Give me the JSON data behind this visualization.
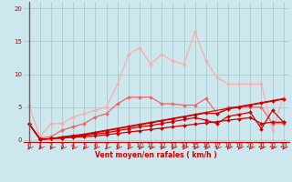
{
  "background_color": "#cce8ee",
  "grid_color": "#aacccc",
  "x_label": "Vent moyen/en rafales ( km/h )",
  "x_ticks": [
    0,
    1,
    2,
    3,
    4,
    5,
    6,
    7,
    8,
    9,
    10,
    11,
    12,
    13,
    14,
    15,
    16,
    17,
    18,
    19,
    20,
    21,
    22,
    23
  ],
  "y_ticks": [
    0,
    5,
    10,
    15,
    20
  ],
  "ylim": [
    -0.3,
    21
  ],
  "xlim": [
    -0.5,
    23.5
  ],
  "lines": [
    {
      "x": [
        0,
        1,
        2,
        3,
        4,
        5,
        6,
        7,
        8,
        9,
        10,
        11,
        12,
        13,
        14,
        15,
        16,
        17,
        18,
        19,
        20,
        21,
        22,
        23
      ],
      "y": [
        5.2,
        0.5,
        2.5,
        2.5,
        3.5,
        4.0,
        4.5,
        5.0,
        8.5,
        13.0,
        14.0,
        11.5,
        13.0,
        12.0,
        11.5,
        16.5,
        12.0,
        9.5,
        8.5,
        8.5,
        8.5,
        8.5,
        1.5,
        6.5
      ],
      "color": "#ffaaaa",
      "lw": 0.9,
      "marker": "D",
      "ms": 2.0,
      "alpha": 1.0
    },
    {
      "x": [
        0,
        1,
        2,
        3,
        4,
        5,
        6,
        7,
        8,
        9,
        10,
        11,
        12,
        13,
        14,
        15,
        16,
        17,
        18,
        19,
        20,
        21,
        22,
        23
      ],
      "y": [
        2.5,
        0.3,
        0.5,
        1.5,
        2.0,
        2.5,
        3.5,
        4.0,
        5.5,
        6.5,
        6.5,
        6.5,
        5.5,
        5.5,
        5.3,
        5.3,
        6.3,
        4.0,
        5.0,
        5.0,
        5.0,
        5.0,
        2.5,
        2.5
      ],
      "color": "#ee6666",
      "lw": 0.9,
      "marker": "D",
      "ms": 2.0,
      "alpha": 1.0
    },
    {
      "x": [
        0,
        1,
        2,
        3,
        4,
        5,
        6,
        7,
        8,
        9,
        10,
        11,
        12,
        13,
        14,
        15,
        16,
        17,
        18,
        19,
        20,
        21,
        22,
        23
      ],
      "y": [
        2.5,
        0.1,
        0.2,
        0.5,
        0.7,
        0.9,
        1.2,
        1.5,
        1.8,
        2.1,
        2.4,
        2.7,
        3.0,
        3.3,
        3.6,
        3.9,
        4.2,
        4.5,
        4.8,
        5.1,
        5.4,
        5.7,
        6.0,
        6.3
      ],
      "color": "#cc0000",
      "lw": 0.8,
      "marker": null,
      "ms": 0,
      "alpha": 1.0
    },
    {
      "x": [
        0,
        1,
        2,
        3,
        4,
        5,
        6,
        7,
        8,
        9,
        10,
        11,
        12,
        13,
        14,
        15,
        16,
        17,
        18,
        19,
        20,
        21,
        22,
        23
      ],
      "y": [
        2.5,
        0.1,
        0.2,
        0.4,
        0.6,
        0.8,
        1.1,
        1.4,
        1.7,
        2.0,
        2.3,
        2.6,
        2.9,
        3.2,
        3.5,
        3.8,
        4.1,
        4.0,
        4.7,
        5.0,
        5.3,
        5.6,
        5.9,
        6.2
      ],
      "color": "#cc0000",
      "lw": 0.9,
      "marker": "D",
      "ms": 2.0,
      "alpha": 1.0
    },
    {
      "x": [
        0,
        1,
        2,
        3,
        4,
        5,
        6,
        7,
        8,
        9,
        10,
        11,
        12,
        13,
        14,
        15,
        16,
        17,
        18,
        19,
        20,
        21,
        22,
        23
      ],
      "y": [
        2.5,
        0.1,
        0.2,
        0.3,
        0.5,
        0.7,
        0.9,
        1.1,
        1.4,
        1.7,
        2.0,
        2.2,
        2.5,
        2.8,
        3.1,
        3.4,
        3.0,
        2.5,
        3.6,
        3.9,
        4.2,
        1.7,
        4.5,
        2.7
      ],
      "color": "#cc0000",
      "lw": 0.9,
      "marker": "D",
      "ms": 2.0,
      "alpha": 1.0
    },
    {
      "x": [
        0,
        1,
        2,
        3,
        4,
        5,
        6,
        7,
        8,
        9,
        10,
        11,
        12,
        13,
        14,
        15,
        16,
        17,
        18,
        19,
        20,
        21,
        22,
        23
      ],
      "y": [
        2.5,
        0.1,
        0.2,
        0.3,
        0.4,
        0.5,
        0.6,
        0.8,
        1.0,
        1.2,
        1.4,
        1.6,
        1.8,
        2.0,
        2.2,
        2.4,
        2.6,
        2.8,
        3.0,
        3.2,
        3.4,
        2.5,
        2.7,
        2.7
      ],
      "color": "#cc0000",
      "lw": 0.9,
      "marker": "D",
      "ms": 2.0,
      "alpha": 1.0
    }
  ]
}
